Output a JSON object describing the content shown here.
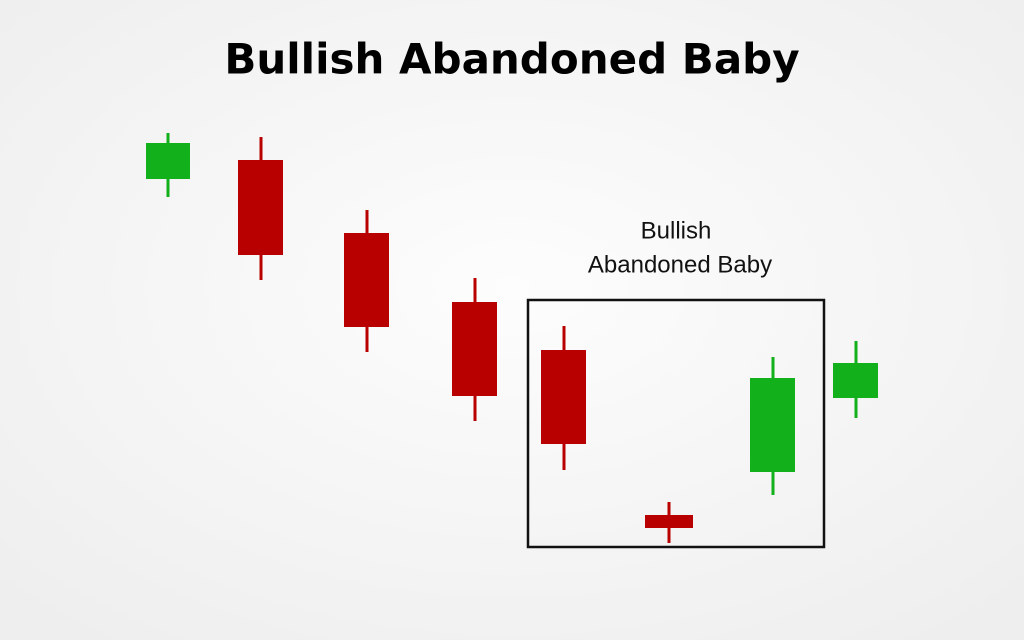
{
  "header": {
    "title": "Bullish Abandoned Baby"
  },
  "annotation": {
    "lines": [
      "Bullish",
      "Abandoned Baby"
    ]
  }
}
